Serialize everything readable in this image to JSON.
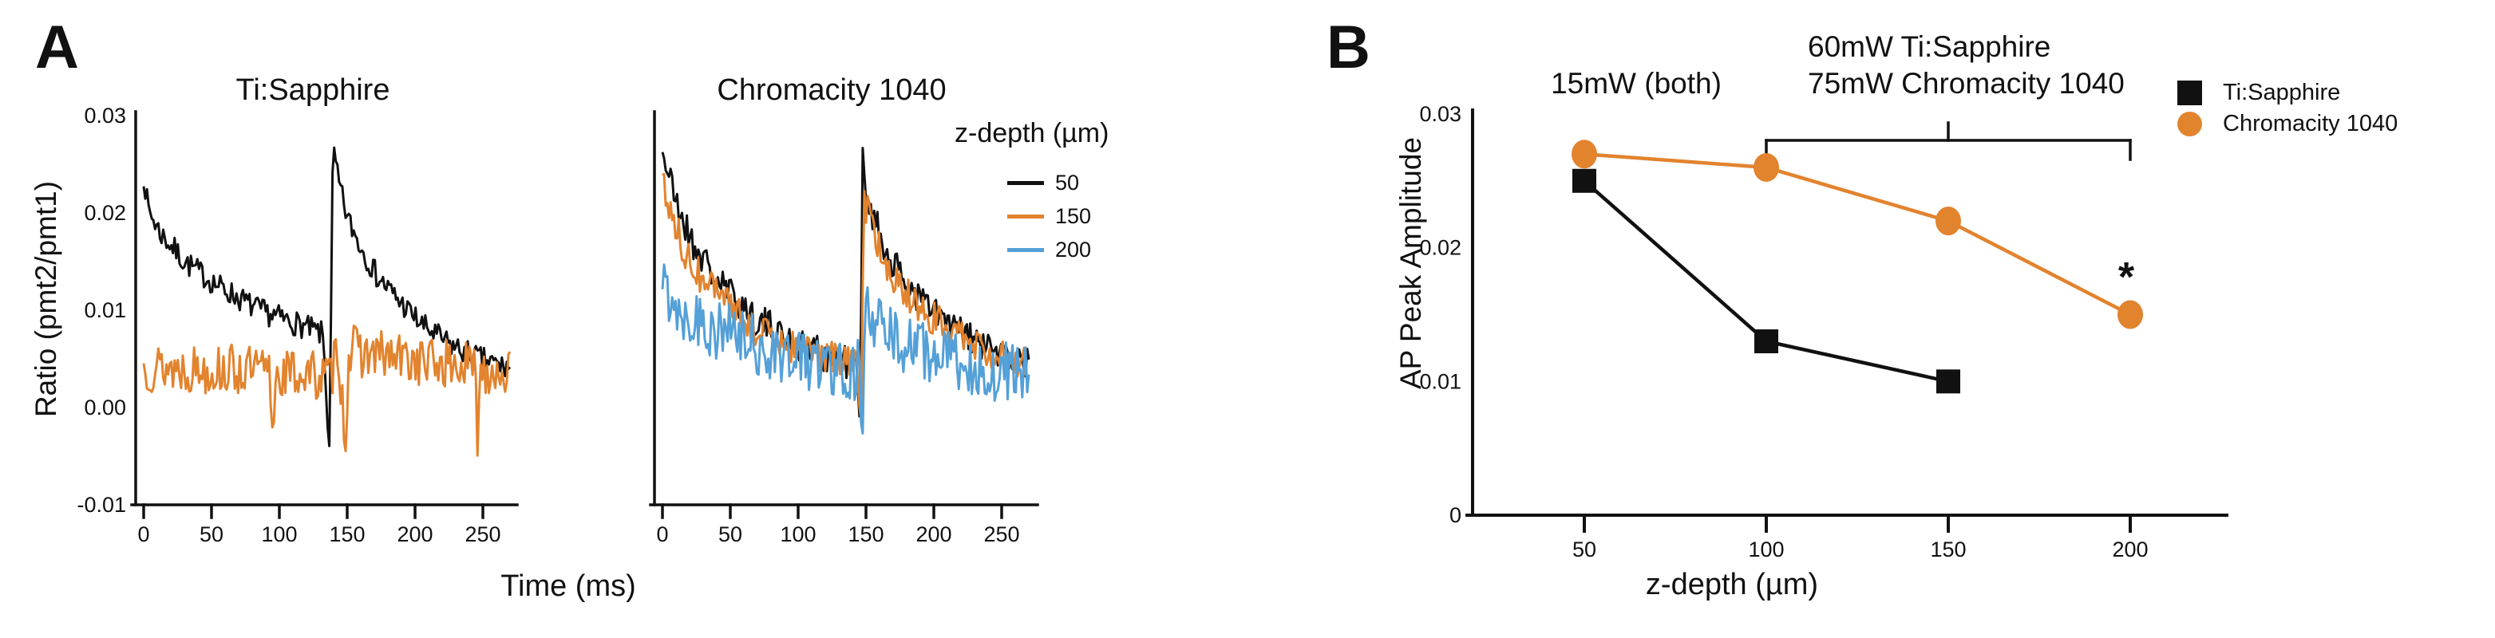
{
  "figure": {
    "panel_a_label": "A",
    "panel_b_label": "B",
    "background": "#FFFFFF",
    "colors": {
      "black": "#111111",
      "orange": "#E2832E",
      "blue": "#54A0D8"
    }
  },
  "chart_data": [
    {
      "id": "a_left",
      "type": "line",
      "title": "Ti:Sapphire",
      "ylabel": "Ratio (pmt2/pmt1)",
      "xlabel": "Time (ms)",
      "xlim": [
        0,
        270
      ],
      "ylim": [
        -0.01,
        0.03
      ],
      "grid": false,
      "xticks": [
        0,
        50,
        100,
        150,
        200,
        250
      ],
      "ytick_values": [
        0.03,
        0.02,
        0.01,
        0.0,
        -0.01
      ],
      "ytick_labels": [
        "0.03",
        "0.02",
        "0.01",
        "0.00",
        "-0.01"
      ],
      "series": [
        {
          "name": "50",
          "color": "black",
          "noise": 0.0013,
          "seed": 7,
          "envelope": [
            [
              0,
              0.024
            ],
            [
              3,
              0.0205
            ],
            [
              12,
              0.018
            ],
            [
              30,
              0.015
            ],
            [
              55,
              0.0125
            ],
            [
              85,
              0.01
            ],
            [
              115,
              0.0085
            ],
            [
              132,
              0.0075
            ],
            [
              135,
              0.001
            ],
            [
              136.5,
              -0.006
            ],
            [
              138,
              0.008
            ],
            [
              139.5,
              0.027
            ],
            [
              143,
              0.0235
            ],
            [
              150,
              0.0195
            ],
            [
              160,
              0.0165
            ],
            [
              172,
              0.0135
            ],
            [
              188,
              0.011
            ],
            [
              205,
              0.0085
            ],
            [
              225,
              0.0065
            ],
            [
              248,
              0.005
            ],
            [
              270,
              0.004
            ]
          ]
        },
        {
          "name": "150",
          "color": "orange",
          "noise": 0.0026,
          "seed": 13,
          "envelope": [
            [
              0,
              0.0042
            ],
            [
              40,
              0.004
            ],
            [
              80,
              0.0038
            ],
            [
              93,
              0.0035
            ],
            [
              95,
              -0.0035
            ],
            [
              97,
              0.0035
            ],
            [
              120,
              0.0035
            ],
            [
              138,
              0.003
            ],
            [
              143,
              0.0068
            ],
            [
              149,
              -0.004
            ],
            [
              151,
              0.006
            ],
            [
              165,
              0.0055
            ],
            [
              190,
              0.005
            ],
            [
              220,
              0.0045
            ],
            [
              244,
              0.004
            ],
            [
              246,
              -0.0025
            ],
            [
              248,
              0.004
            ],
            [
              270,
              0.0038
            ]
          ]
        }
      ]
    },
    {
      "id": "a_right",
      "type": "line",
      "title": "Chromacity 1040",
      "xlim": [
        0,
        270
      ],
      "ylim": [
        -0.01,
        0.03
      ],
      "grid": false,
      "xticks": [
        0,
        50,
        100,
        150,
        200,
        250
      ],
      "series": [
        {
          "name": "50",
          "color": "black",
          "noise": 0.0018,
          "seed": 21,
          "envelope": [
            [
              0,
              0.0265
            ],
            [
              8,
              0.022
            ],
            [
              20,
              0.0175
            ],
            [
              40,
              0.013
            ],
            [
              70,
              0.009
            ],
            [
              100,
              0.0065
            ],
            [
              130,
              0.005
            ],
            [
              143,
              0.0045
            ],
            [
              145.5,
              -0.003
            ],
            [
              147.5,
              0.0255
            ],
            [
              152,
              0.021
            ],
            [
              162,
              0.017
            ],
            [
              175,
              0.0135
            ],
            [
              195,
              0.0105
            ],
            [
              215,
              0.008
            ],
            [
              240,
              0.006
            ],
            [
              270,
              0.0045
            ]
          ]
        },
        {
          "name": "150",
          "color": "orange",
          "noise": 0.0018,
          "seed": 34,
          "envelope": [
            [
              0,
              0.0235
            ],
            [
              8,
              0.019
            ],
            [
              20,
              0.015
            ],
            [
              40,
              0.0115
            ],
            [
              70,
              0.008
            ],
            [
              100,
              0.006
            ],
            [
              130,
              0.0048
            ],
            [
              144,
              0.0042
            ],
            [
              146,
              -0.004
            ],
            [
              148.5,
              0.0215
            ],
            [
              155,
              0.018
            ],
            [
              168,
              0.014
            ],
            [
              185,
              0.011
            ],
            [
              205,
              0.0085
            ],
            [
              230,
              0.0065
            ],
            [
              255,
              0.005
            ],
            [
              270,
              0.0045
            ]
          ]
        },
        {
          "name": "200",
          "color": "blue",
          "noise": 0.0032,
          "seed": 55,
          "envelope": [
            [
              0,
              0.0125
            ],
            [
              15,
              0.01
            ],
            [
              40,
              0.008
            ],
            [
              70,
              0.0062
            ],
            [
              100,
              0.005
            ],
            [
              130,
              0.0042
            ],
            [
              145,
              0.0038
            ],
            [
              147,
              -0.003
            ],
            [
              150,
              0.0095
            ],
            [
              160,
              0.008
            ],
            [
              180,
              0.0065
            ],
            [
              205,
              0.005
            ],
            [
              235,
              0.004
            ],
            [
              270,
              0.0032
            ]
          ]
        }
      ],
      "legend": {
        "title": "z-depth (µm)",
        "entries": [
          {
            "label": "50",
            "color": "black"
          },
          {
            "label": "150",
            "color": "orange"
          },
          {
            "label": "200",
            "color": "blue"
          }
        ]
      }
    },
    {
      "id": "b",
      "type": "line",
      "ylabel": "AP Peak Amplitude",
      "xlabel": "z-depth (µm)",
      "xlim": [
        30,
        220
      ],
      "ylim": [
        0,
        0.03
      ],
      "grid": false,
      "xticks": [
        50,
        100,
        150,
        200
      ],
      "ytick_values": [
        0,
        0.01,
        0.02,
        0.03
      ],
      "ytick_labels": [
        "0",
        "0.01",
        "0.02",
        "0.03"
      ],
      "series": [
        {
          "name": "Ti:Sapphire",
          "color": "black",
          "marker": "square",
          "x": [
            50,
            100,
            150
          ],
          "values": [
            0.025,
            0.013,
            0.01
          ]
        },
        {
          "name": "Chromacity 1040",
          "color": "orange",
          "marker": "circle",
          "x": [
            50,
            100,
            150,
            200
          ],
          "values": [
            0.027,
            0.026,
            0.022,
            0.015
          ]
        }
      ],
      "annotations": {
        "left_power": "15mW (both)",
        "right_power_line1": "60mW Ti:Sapphire",
        "right_power_line2": "75mW Chromacity 1040",
        "significance": "*",
        "bracket": {
          "from_x": 100,
          "to_x": 200,
          "mid_x": 150
        }
      },
      "legend": {
        "entries": [
          {
            "label": "Ti:Sapphire",
            "marker": "square",
            "color": "black"
          },
          {
            "label": "Chromacity 1040",
            "marker": "circle",
            "color": "orange"
          }
        ]
      }
    }
  ]
}
